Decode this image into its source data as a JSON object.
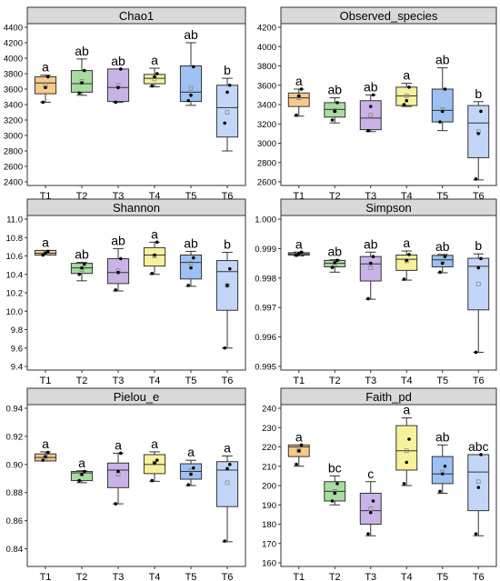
{
  "figure": {
    "categories": [
      "T1",
      "T2",
      "T3",
      "T4",
      "T5",
      "T6"
    ],
    "colors": [
      "#f7c98b",
      "#a8dca0",
      "#c9b3e6",
      "#f7f29a",
      "#9cc1f2",
      "#c4d6f8"
    ]
  },
  "chart_data": [
    {
      "type": "box",
      "title": "Chao1",
      "categories": [
        "T1",
        "T2",
        "T3",
        "T4",
        "T5",
        "T6"
      ],
      "ylim": [
        2400,
        4400
      ],
      "yticks": [
        2400,
        2600,
        2800,
        3000,
        3200,
        3400,
        3600,
        3800,
        4000,
        4200,
        4400
      ],
      "boxes": [
        {
          "min": 3430,
          "q1": 3540,
          "median": 3680,
          "q3": 3760,
          "max": 3780,
          "mean": 3650,
          "letter": "a",
          "points": [
            3430,
            3620,
            3760
          ]
        },
        {
          "min": 3520,
          "q1": 3560,
          "median": 3670,
          "q3": 3840,
          "max": 3990,
          "mean": 3700,
          "letter": "ab",
          "points": [
            3550,
            3680,
            3840
          ]
        },
        {
          "min": 3430,
          "q1": 3440,
          "median": 3620,
          "q3": 3860,
          "max": 3860,
          "mean": 3650,
          "letter": "ab",
          "points": [
            3430,
            3620,
            3860
          ]
        },
        {
          "min": 3630,
          "q1": 3670,
          "median": 3740,
          "q3": 3790,
          "max": 3870,
          "mean": 3730,
          "letter": "a",
          "points": [
            3640,
            3760,
            3800
          ]
        },
        {
          "min": 3390,
          "q1": 3440,
          "median": 3560,
          "q3": 3900,
          "max": 4200,
          "mean": 3610,
          "letter": "ab",
          "points": [
            3450,
            3520,
            3890
          ]
        },
        {
          "min": 2800,
          "q1": 2980,
          "median": 3360,
          "q3": 3650,
          "max": 3740,
          "mean": 3300,
          "letter": "b",
          "points": [
            3160,
            3560,
            3650
          ]
        }
      ]
    },
    {
      "type": "box",
      "title": "Observed_species",
      "categories": [
        "T1",
        "T2",
        "T3",
        "T4",
        "T5",
        "T6"
      ],
      "ylim": [
        2600,
        4200
      ],
      "yticks": [
        2600,
        2800,
        3000,
        3200,
        3400,
        3600,
        3800,
        4000,
        4200
      ],
      "boxes": [
        {
          "min": 3280,
          "q1": 3380,
          "median": 3470,
          "q3": 3520,
          "max": 3560,
          "mean": 3470,
          "letter": "a",
          "points": [
            3290,
            3490,
            3560
          ]
        },
        {
          "min": 3210,
          "q1": 3270,
          "median": 3350,
          "q3": 3420,
          "max": 3470,
          "mean": 3340,
          "letter": "ab",
          "points": [
            3240,
            3330,
            3420
          ]
        },
        {
          "min": 3120,
          "q1": 3140,
          "median": 3260,
          "q3": 3440,
          "max": 3500,
          "mean": 3290,
          "letter": "ab",
          "points": [
            3130,
            3380,
            3500
          ]
        },
        {
          "min": 3380,
          "q1": 3390,
          "median": 3490,
          "q3": 3580,
          "max": 3620,
          "mean": 3490,
          "letter": "a",
          "points": [
            3400,
            3440,
            3580
          ]
        },
        {
          "min": 3130,
          "q1": 3220,
          "median": 3340,
          "q3": 3560,
          "max": 3780,
          "mean": 3350,
          "letter": "ab",
          "points": [
            3220,
            3330,
            3560
          ]
        },
        {
          "min": 2620,
          "q1": 2850,
          "median": 3210,
          "q3": 3390,
          "max": 3430,
          "mean": 3120,
          "letter": "b",
          "points": [
            2630,
            3100,
            3330
          ]
        }
      ]
    },
    {
      "type": "box",
      "title": "Shannon",
      "categories": [
        "T1",
        "T2",
        "T3",
        "T4",
        "T5",
        "T6"
      ],
      "ylim": [
        9.4,
        11.0
      ],
      "yticks": [
        9.4,
        9.6,
        9.8,
        10.0,
        10.2,
        10.4,
        10.6,
        10.8,
        11.0
      ],
      "boxes": [
        {
          "min": 10.61,
          "q1": 10.61,
          "median": 10.63,
          "q3": 10.66,
          "max": 10.66,
          "mean": 10.63,
          "letter": "a",
          "points": [
            10.61,
            10.63,
            10.65
          ]
        },
        {
          "min": 10.33,
          "q1": 10.41,
          "median": 10.47,
          "q3": 10.52,
          "max": 10.53,
          "mean": 10.45,
          "letter": "ab",
          "points": [
            10.4,
            10.47,
            10.51
          ]
        },
        {
          "min": 10.22,
          "q1": 10.3,
          "median": 10.42,
          "q3": 10.57,
          "max": 10.68,
          "mean": 10.44,
          "letter": "ab",
          "points": [
            10.23,
            10.42,
            10.57
          ]
        },
        {
          "min": 10.4,
          "q1": 10.49,
          "median": 10.61,
          "q3": 10.69,
          "max": 10.75,
          "mean": 10.6,
          "letter": "a",
          "points": [
            10.41,
            10.61,
            10.75
          ]
        },
        {
          "min": 10.27,
          "q1": 10.35,
          "median": 10.53,
          "q3": 10.61,
          "max": 10.65,
          "mean": 10.52,
          "letter": "ab",
          "points": [
            10.28,
            10.47,
            10.58
          ]
        },
        {
          "min": 9.6,
          "q1": 10.01,
          "median": 10.43,
          "q3": 10.55,
          "max": 10.64,
          "mean": 10.28,
          "letter": "b",
          "points": [
            9.6,
            10.28,
            10.46
          ]
        }
      ]
    },
    {
      "type": "box",
      "title": "Simpson",
      "categories": [
        "T1",
        "T2",
        "T3",
        "T4",
        "T5",
        "T6"
      ],
      "ylim": [
        0.995,
        1.0
      ],
      "yticks": [
        0.995,
        0.996,
        0.997,
        0.998,
        0.999,
        1.0
      ],
      "boxes": [
        {
          "min": 0.99875,
          "q1": 0.99878,
          "median": 0.99882,
          "q3": 0.99886,
          "max": 0.99888,
          "mean": 0.99882,
          "letter": "a",
          "points": [
            0.99877,
            0.99883,
            0.99888
          ]
        },
        {
          "min": 0.9982,
          "q1": 0.99838,
          "median": 0.9985,
          "q3": 0.9986,
          "max": 0.99862,
          "mean": 0.99847,
          "letter": "ab",
          "points": [
            0.99836,
            0.99852,
            0.9986
          ]
        },
        {
          "min": 0.99728,
          "q1": 0.9979,
          "median": 0.99848,
          "q3": 0.99873,
          "max": 0.99888,
          "mean": 0.99835,
          "letter": "ab",
          "points": [
            0.9973,
            0.9985,
            0.99873
          ]
        },
        {
          "min": 0.99793,
          "q1": 0.99826,
          "median": 0.99864,
          "q3": 0.99878,
          "max": 0.99892,
          "mean": 0.99858,
          "letter": "a",
          "points": [
            0.99796,
            0.9986,
            0.9988
          ]
        },
        {
          "min": 0.99818,
          "q1": 0.99838,
          "median": 0.99862,
          "q3": 0.99877,
          "max": 0.9988,
          "mean": 0.99858,
          "letter": "ab",
          "points": [
            0.9982,
            0.9985,
            0.99873
          ]
        },
        {
          "min": 0.99548,
          "q1": 0.99692,
          "median": 0.9984,
          "q3": 0.99867,
          "max": 0.99882,
          "mean": 0.9978,
          "letter": "b",
          "points": [
            0.99548,
            0.99835,
            0.99866
          ]
        }
      ]
    },
    {
      "type": "box",
      "title": "Pielou_e",
      "categories": [
        "T1",
        "T2",
        "T3",
        "T4",
        "T5",
        "T6"
      ],
      "ylim": [
        0.83,
        0.94
      ],
      "yticks": [
        0.84,
        0.86,
        0.88,
        0.9,
        0.92,
        0.94
      ],
      "boxes": [
        {
          "min": 0.9025,
          "q1": 0.9025,
          "median": 0.905,
          "q3": 0.9075,
          "max": 0.909,
          "mean": 0.905,
          "letter": "a",
          "points": [
            0.903,
            0.9055,
            0.9085
          ]
        },
        {
          "min": 0.887,
          "q1": 0.8885,
          "median": 0.894,
          "q3": 0.895,
          "max": 0.8955,
          "mean": 0.893,
          "letter": "a",
          "points": [
            0.8885,
            0.893,
            0.895
          ]
        },
        {
          "min": 0.872,
          "q1": 0.8835,
          "median": 0.896,
          "q3": 0.901,
          "max": 0.908,
          "mean": 0.893,
          "letter": "a",
          "points": [
            0.872,
            0.895,
            0.908
          ]
        },
        {
          "min": 0.888,
          "q1": 0.8935,
          "median": 0.9,
          "q3": 0.907,
          "max": 0.909,
          "mean": 0.901,
          "letter": "a",
          "points": [
            0.8885,
            0.901,
            0.903
          ]
        },
        {
          "min": 0.885,
          "q1": 0.8895,
          "median": 0.895,
          "q3": 0.9005,
          "max": 0.903,
          "mean": 0.8955,
          "letter": "a",
          "points": [
            0.8855,
            0.893,
            0.8975
          ]
        },
        {
          "min": 0.845,
          "q1": 0.87,
          "median": 0.896,
          "q3": 0.902,
          "max": 0.906,
          "mean": 0.887,
          "letter": "a",
          "points": [
            0.8455,
            0.897,
            0.9
          ]
        }
      ]
    },
    {
      "type": "box",
      "title": "Faith_pd",
      "categories": [
        "T1",
        "T2",
        "T3",
        "T4",
        "T5",
        "T6"
      ],
      "ylim": [
        160,
        240
      ],
      "yticks": [
        160,
        170,
        180,
        190,
        200,
        210,
        220,
        230,
        240
      ],
      "boxes": [
        {
          "min": 210,
          "q1": 215,
          "median": 220,
          "q3": 221,
          "max": 221,
          "mean": 218,
          "letter": "a",
          "points": [
            211,
            218,
            221
          ]
        },
        {
          "min": 190,
          "q1": 192,
          "median": 197,
          "q3": 202,
          "max": 205,
          "mean": 197,
          "letter": "bc",
          "points": [
            192,
            196,
            201
          ]
        },
        {
          "min": 174,
          "q1": 180,
          "median": 187,
          "q3": 196,
          "max": 202,
          "mean": 188,
          "letter": "c",
          "points": [
            175,
            186,
            192
          ]
        },
        {
          "min": 200,
          "q1": 208,
          "median": 218,
          "q3": 231,
          "max": 235,
          "mean": 218,
          "letter": "a",
          "points": [
            201,
            212,
            224
          ]
        },
        {
          "min": 196,
          "q1": 201,
          "median": 206,
          "q3": 215,
          "max": 221,
          "mean": 207,
          "letter": "ab",
          "points": [
            197,
            206,
            210
          ]
        },
        {
          "min": 174,
          "q1": 187,
          "median": 207,
          "q3": 216,
          "max": 216,
          "mean": 202,
          "letter": "abc",
          "points": [
            175,
            199,
            216
          ]
        }
      ]
    }
  ]
}
